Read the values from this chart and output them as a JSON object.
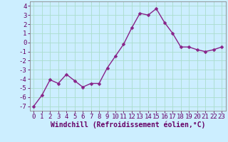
{
  "hours": [
    0,
    1,
    2,
    3,
    4,
    5,
    6,
    7,
    8,
    9,
    10,
    11,
    12,
    13,
    14,
    15,
    16,
    17,
    18,
    19,
    20,
    21,
    22,
    23
  ],
  "values": [
    -7.0,
    -5.8,
    -4.1,
    -4.5,
    -3.5,
    -4.2,
    -4.9,
    -4.5,
    -4.5,
    -2.8,
    -1.5,
    -0.2,
    1.6,
    3.2,
    3.0,
    3.7,
    2.2,
    1.0,
    -0.5,
    -0.5,
    -0.8,
    -1.0,
    -0.8,
    -0.5
  ],
  "line_color": "#882288",
  "marker": "D",
  "marker_size": 2.5,
  "bg_color": "#cceeff",
  "grid_color": "#aaddcc",
  "xlabel": "Windchill (Refroidissement éolien,°C)",
  "xlabel_color": "#660066",
  "xlabel_fontsize": 7,
  "tick_color": "#660066",
  "tick_fontsize": 6.5,
  "ylim": [
    -7.5,
    4.5
  ],
  "yticks": [
    -7,
    -6,
    -5,
    -4,
    -3,
    -2,
    -1,
    0,
    1,
    2,
    3,
    4
  ],
  "xticks": [
    0,
    1,
    2,
    3,
    4,
    5,
    6,
    7,
    8,
    9,
    10,
    11,
    12,
    13,
    14,
    15,
    16,
    17,
    18,
    19,
    20,
    21,
    22,
    23
  ],
  "xtick_labels": [
    "0",
    "1",
    "2",
    "3",
    "4",
    "5",
    "6",
    "7",
    "8",
    "9",
    "10",
    "11",
    "12",
    "13",
    "14",
    "15",
    "16",
    "17",
    "18",
    "19",
    "20",
    "21",
    "22",
    "23"
  ],
  "line_width": 1.0,
  "spine_color": "#888888"
}
